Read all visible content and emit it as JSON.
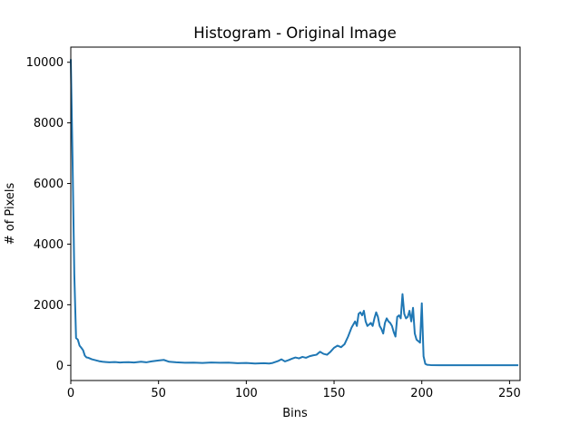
{
  "chart_data": {
    "type": "line",
    "title": "Histogram - Original Image",
    "xlabel": "Bins",
    "ylabel": "# of Pixels",
    "xlim": [
      0,
      256
    ],
    "ylim": [
      -500,
      10500
    ],
    "x_ticks": [
      0,
      50,
      100,
      150,
      200,
      250
    ],
    "y_ticks": [
      0,
      2000,
      4000,
      6000,
      8000,
      10000
    ],
    "grid": false,
    "series": [
      {
        "color": "#1f77b4",
        "x": [
          0,
          1,
          2,
          3,
          4,
          5,
          6,
          7,
          8,
          9,
          10,
          12,
          14,
          16,
          18,
          20,
          22,
          25,
          28,
          30,
          33,
          36,
          40,
          43,
          46,
          50,
          53,
          56,
          60,
          65,
          70,
          75,
          80,
          85,
          90,
          95,
          100,
          105,
          110,
          113,
          115,
          118,
          120,
          122,
          124,
          126,
          128,
          130,
          132,
          134,
          136,
          138,
          140,
          142,
          144,
          146,
          148,
          150,
          152,
          154,
          156,
          158,
          160,
          162,
          163,
          164,
          165,
          166,
          167,
          168,
          169,
          170,
          171,
          172,
          173,
          174,
          175,
          176,
          177,
          178,
          179,
          180,
          181,
          182,
          183,
          184,
          185,
          186,
          187,
          188,
          189,
          190,
          191,
          192,
          193,
          194,
          195,
          196,
          197,
          198,
          199,
          200,
          201,
          202,
          203,
          205,
          210,
          220,
          230,
          240,
          250,
          255
        ],
        "y": [
          10100,
          6800,
          3000,
          900,
          850,
          650,
          580,
          500,
          320,
          260,
          250,
          200,
          170,
          140,
          120,
          110,
          100,
          110,
          95,
          100,
          105,
          95,
          120,
          100,
          130,
          160,
          180,
          120,
          100,
          85,
          90,
          80,
          95,
          85,
          90,
          70,
          80,
          60,
          70,
          60,
          80,
          140,
          200,
          130,
          170,
          220,
          260,
          230,
          280,
          250,
          300,
          330,
          350,
          450,
          380,
          350,
          450,
          580,
          650,
          600,
          700,
          950,
          1250,
          1450,
          1300,
          1700,
          1750,
          1650,
          1800,
          1450,
          1300,
          1350,
          1400,
          1300,
          1550,
          1750,
          1600,
          1300,
          1200,
          1050,
          1400,
          1550,
          1450,
          1400,
          1300,
          1100,
          950,
          1600,
          1650,
          1550,
          2350,
          1700,
          1550,
          1600,
          1800,
          1450,
          1900,
          1050,
          850,
          800,
          750,
          2050,
          300,
          50,
          20,
          10,
          5,
          3,
          3,
          3,
          3,
          3
        ]
      }
    ]
  }
}
